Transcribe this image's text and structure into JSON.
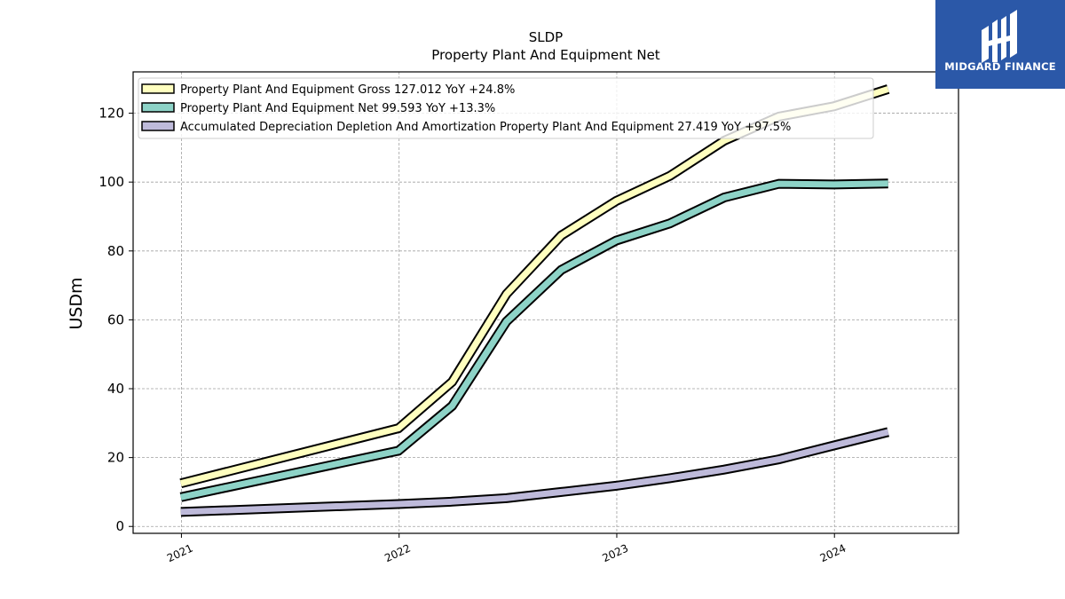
{
  "chart_data": {
    "type": "line",
    "title": "SLDP",
    "subtitle": "Property Plant And Equipment Net",
    "ylabel": "USDm",
    "xlabel": "",
    "ylim": [
      -2,
      132
    ],
    "xlim": [
      "2020-10-12",
      "2024-07-27"
    ],
    "yticks": [
      0,
      20,
      40,
      60,
      80,
      100,
      120
    ],
    "xticks": [
      {
        "date": "2021-01-01",
        "label": "2021"
      },
      {
        "date": "2022-01-01",
        "label": "2022"
      },
      {
        "date": "2023-01-01",
        "label": "2023"
      },
      {
        "date": "2024-01-01",
        "label": "2024"
      }
    ],
    "grid": true,
    "legend_position": "top-left",
    "series": [
      {
        "name": "Property Plant And Equipment Gross",
        "legend_label": "Property Plant And Equipment Gross  127.012 YoY +24.8%",
        "color": "#ffffbf",
        "points": [
          {
            "x": "2020-12-31",
            "y": 12.5
          },
          {
            "x": "2021-12-31",
            "y": 28.5
          },
          {
            "x": "2022-03-31",
            "y": 42.0
          },
          {
            "x": "2022-06-30",
            "y": 67.5
          },
          {
            "x": "2022-09-30",
            "y": 84.5
          },
          {
            "x": "2022-12-31",
            "y": 94.5
          },
          {
            "x": "2023-03-31",
            "y": 101.8
          },
          {
            "x": "2023-06-30",
            "y": 112.0
          },
          {
            "x": "2023-09-30",
            "y": 119.0
          },
          {
            "x": "2023-12-31",
            "y": 122.0
          },
          {
            "x": "2024-03-31",
            "y": 127.0
          }
        ]
      },
      {
        "name": "Property Plant And Equipment Net",
        "legend_label": "Property Plant And Equipment Net  99.593 YoY +13.3%",
        "color": "#8dd3c7",
        "points": [
          {
            "x": "2020-12-31",
            "y": 8.5
          },
          {
            "x": "2021-12-31",
            "y": 22.0
          },
          {
            "x": "2022-03-31",
            "y": 35.0
          },
          {
            "x": "2022-06-30",
            "y": 59.5
          },
          {
            "x": "2022-09-30",
            "y": 74.5
          },
          {
            "x": "2022-12-31",
            "y": 83.0
          },
          {
            "x": "2023-03-31",
            "y": 88.0
          },
          {
            "x": "2023-06-30",
            "y": 95.5
          },
          {
            "x": "2023-09-30",
            "y": 99.5
          },
          {
            "x": "2023-12-31",
            "y": 99.3
          },
          {
            "x": "2024-03-31",
            "y": 99.6
          }
        ]
      },
      {
        "name": "Accumulated Depreciation Depletion And Amortization Property Plant And Equipment",
        "legend_label": "Accumulated Depreciation Depletion And Amortization Property Plant And Equipment  27.419 YoY +97.5%",
        "color": "#bebada",
        "points": [
          {
            "x": "2020-12-31",
            "y": 4.2
          },
          {
            "x": "2021-12-31",
            "y": 6.5
          },
          {
            "x": "2022-03-31",
            "y": 7.2
          },
          {
            "x": "2022-06-30",
            "y": 8.2
          },
          {
            "x": "2022-09-30",
            "y": 10.0
          },
          {
            "x": "2022-12-31",
            "y": 11.8
          },
          {
            "x": "2023-03-31",
            "y": 14.0
          },
          {
            "x": "2023-06-30",
            "y": 16.5
          },
          {
            "x": "2023-09-30",
            "y": 19.5
          },
          {
            "x": "2023-12-31",
            "y": 23.5
          },
          {
            "x": "2024-03-31",
            "y": 27.4
          }
        ]
      }
    ]
  },
  "logo": {
    "text": "MIDGARD FINANCE"
  }
}
